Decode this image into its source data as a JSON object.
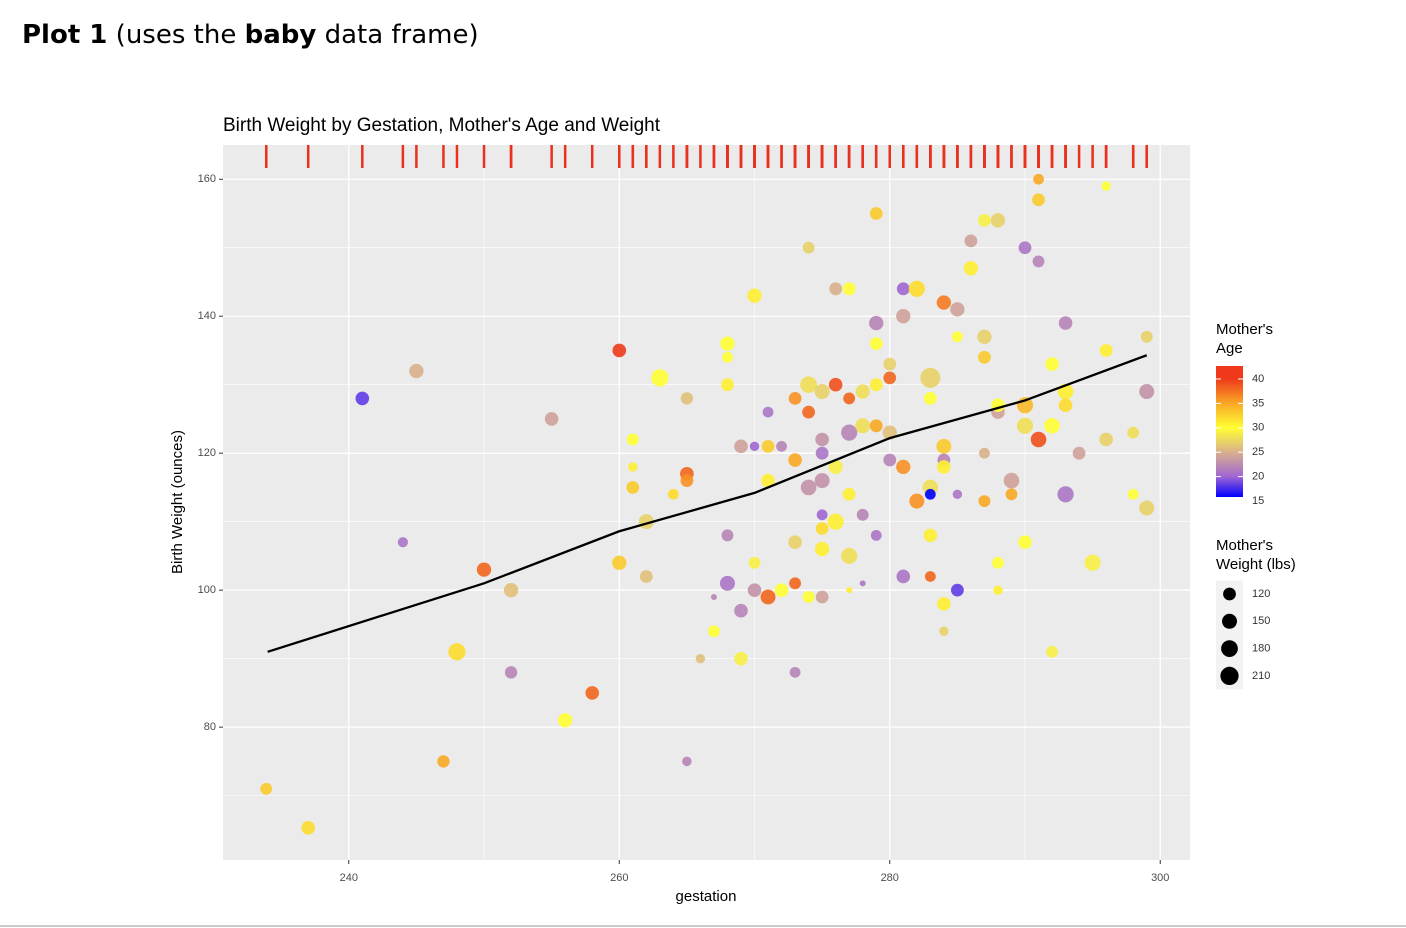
{
  "header": {
    "bold_1": "Plot 1",
    "text_1": "(uses the",
    "bold_2": "baby",
    "text_2": "data frame)"
  },
  "chart_data": {
    "type": "scatter",
    "title": "Birth Weight by Gestation, Mother's Age and Weight",
    "x_label": "gestation",
    "y_label": "Birth Weight (ounces)",
    "xlim": [
      230.7,
      302.2
    ],
    "xticks": [
      240,
      260,
      280,
      300
    ],
    "ylim": [
      60.6,
      165
    ],
    "yticks": [
      80,
      100,
      120,
      140,
      160
    ],
    "grid": true,
    "rug": true,
    "rug_color": "#e8311e",
    "color_legend_title": [
      "Mother's",
      "Age"
    ],
    "color_ticks": [
      15,
      20,
      25,
      30,
      35,
      40
    ],
    "color_stops": [
      "#0000ff",
      "#a066d3",
      "#d9b08c",
      "#ffff33",
      "#f9a825",
      "#ee3a1a"
    ],
    "size_legend_title": [
      "Mother's",
      "Weight (lbs)"
    ],
    "size_ticks": [
      120,
      150,
      180,
      210
    ],
    "x": [
      233.9,
      237,
      241,
      245,
      244,
      247,
      248,
      250,
      252,
      252,
      255,
      256,
      258,
      260,
      261,
      261,
      261,
      260,
      262,
      262,
      263,
      264,
      265,
      265,
      265,
      265,
      266,
      267,
      267,
      268,
      268,
      268,
      268,
      268,
      269,
      269,
      269,
      270,
      270,
      270,
      270,
      271,
      271,
      271,
      271,
      272,
      272,
      273,
      273,
      273,
      273,
      273,
      274,
      274,
      274,
      274,
      274,
      275,
      275,
      275,
      275,
      275,
      275,
      275,
      275,
      276,
      276,
      276,
      276,
      277,
      277,
      277,
      277,
      277,
      277,
      278,
      278,
      278,
      278,
      279,
      279,
      279,
      279,
      279,
      279,
      280,
      280,
      280,
      280,
      281,
      281,
      281,
      281,
      282,
      282,
      283,
      283,
      283,
      283,
      283,
      283,
      284,
      284,
      284,
      284,
      284,
      284,
      285,
      285,
      285,
      285,
      286,
      286,
      287,
      288,
      287,
      287,
      287,
      287,
      288,
      288,
      288,
      288,
      289,
      289,
      290,
      290,
      290,
      290,
      291,
      291,
      291,
      291,
      292,
      292,
      292,
      293,
      293,
      293,
      293,
      294,
      295,
      296,
      296,
      296,
      298,
      298,
      299,
      299,
      299
    ],
    "y": [
      71,
      65.3,
      128,
      132,
      107,
      75,
      91,
      103,
      100,
      88,
      125,
      81,
      85,
      135,
      122,
      118,
      115,
      104,
      110,
      102,
      131,
      114,
      128,
      117,
      116,
      75,
      90,
      99,
      94,
      136,
      134,
      130,
      108,
      101,
      121,
      97,
      90,
      143,
      121,
      104,
      100,
      126,
      121,
      116,
      99,
      121,
      100,
      128,
      119,
      107,
      101,
      88,
      150,
      130,
      126,
      115,
      99,
      129,
      122,
      120,
      116,
      111,
      109,
      106,
      99,
      144,
      130,
      118,
      110,
      144,
      128,
      123,
      114,
      105,
      100,
      129,
      124,
      111,
      101,
      155,
      139,
      136,
      130,
      124,
      108,
      133,
      131,
      123,
      119,
      144,
      140,
      118,
      102,
      144,
      113,
      131,
      128,
      115,
      114,
      108,
      102,
      142,
      121,
      119,
      118,
      98,
      94,
      141,
      137,
      114,
      100,
      151,
      147,
      154,
      154,
      137,
      134,
      120,
      113,
      126,
      127,
      104,
      100,
      116,
      114,
      150,
      127,
      124,
      107,
      160,
      157,
      148,
      122,
      133,
      124,
      91,
      139,
      129,
      127,
      114,
      120,
      104,
      159,
      135,
      122,
      123,
      114,
      137,
      129,
      112
    ],
    "age": [
      33,
      32,
      18,
      25,
      21,
      35,
      32,
      38,
      26,
      22,
      24,
      30,
      38,
      40,
      30,
      31,
      33,
      33,
      27,
      26,
      30,
      32,
      26,
      38,
      36,
      22,
      26,
      22,
      30,
      30,
      30,
      31,
      22,
      21,
      24,
      22,
      29,
      31,
      20,
      29,
      23,
      21,
      33,
      31,
      38,
      22,
      30,
      36,
      35,
      27,
      38,
      22,
      27,
      28,
      38,
      23,
      30,
      27,
      23,
      21,
      23,
      20,
      32,
      31,
      24,
      25,
      39,
      29,
      31,
      30,
      38,
      22,
      31,
      28,
      31,
      28,
      28,
      22,
      21,
      33,
      22,
      30,
      31,
      35,
      21,
      27,
      38,
      26,
      22,
      20,
      24,
      36,
      21,
      32,
      36,
      27,
      30,
      28,
      15,
      31,
      38,
      37,
      33,
      22,
      31,
      31,
      27,
      24,
      30,
      21,
      18,
      24,
      31,
      29,
      27,
      27,
      33,
      25,
      35,
      24,
      30,
      30,
      31,
      24,
      35,
      21,
      34,
      28,
      30,
      35,
      33,
      22,
      39,
      30,
      30,
      29,
      22,
      31,
      32,
      21,
      24,
      29,
      30,
      31,
      27,
      28,
      30,
      27,
      23,
      27
    ],
    "weight": [
      110,
      130,
      130,
      140,
      95,
      115,
      190,
      140,
      140,
      115,
      130,
      140,
      130,
      130,
      110,
      90,
      120,
      140,
      150,
      120,
      190,
      100,
      115,
      130,
      120,
      90,
      90,
      80,
      110,
      140,
      100,
      120,
      110,
      150,
      130,
      130,
      130,
      140,
      90,
      110,
      130,
      100,
      120,
      130,
      150,
      100,
      130,
      120,
      130,
      130,
      110,
      100,
      110,
      180,
      120,
      160,
      110,
      150,
      130,
      120,
      150,
      100,
      120,
      140,
      120,
      120,
      130,
      140,
      170,
      120,
      110,
      170,
      120,
      170,
      80,
      140,
      150,
      110,
      80,
      120,
      140,
      120,
      120,
      120,
      100,
      120,
      120,
      140,
      120,
      120,
      140,
      140,
      130,
      170,
      150,
      250,
      120,
      160,
      100,
      130,
      100,
      140,
      150,
      120,
      130,
      130,
      90,
      140,
      100,
      90,
      120,
      120,
      140,
      120,
      140,
      140,
      120,
      100,
      110,
      130,
      130,
      110,
      90,
      160,
      110,
      120,
      170,
      170,
      130,
      100,
      120,
      110,
      160,
      130,
      160,
      110,
      130,
      160,
      130,
      170,
      120,
      170,
      90,
      120,
      130,
      110,
      100,
      110,
      150,
      150
    ],
    "trend": {
      "x": [
        234,
        250,
        260,
        270,
        280,
        290,
        299
      ],
      "y": [
        91,
        101,
        108.6,
        114.2,
        122.2,
        127.7,
        134.3
      ]
    }
  }
}
